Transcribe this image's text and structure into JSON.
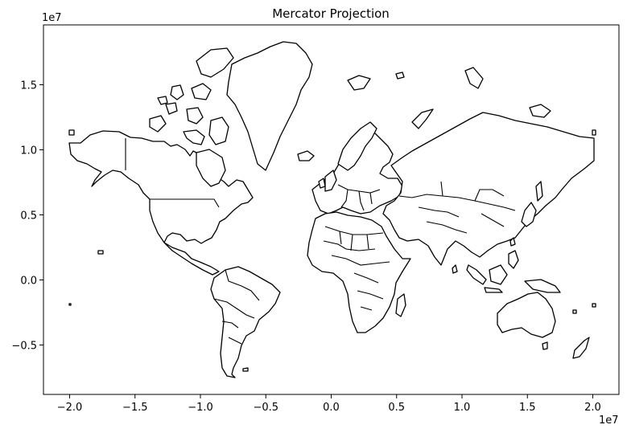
{
  "chart_data": {
    "type": "map",
    "title": "Mercator Projection",
    "projection": "Mercator",
    "xlim": [
      -2.2,
      2.2
    ],
    "ylim": [
      -0.88,
      1.96
    ],
    "x_ticks": [
      -2.0,
      -1.5,
      -1.0,
      -0.5,
      0.0,
      0.5,
      1.0,
      1.5,
      2.0
    ],
    "x_tick_labels": [
      "−2.0",
      "−1.5",
      "−1.0",
      "−0.5",
      "0.0",
      "0.5",
      "1.0",
      "1.5",
      "2.0"
    ],
    "y_ticks": [
      -0.5,
      0.0,
      0.5,
      1.0,
      1.5
    ],
    "y_tick_labels": [
      "−0.5",
      "0.0",
      "0.5",
      "1.0",
      "1.5"
    ],
    "x_offset_label": "1e7",
    "y_offset_label": "1e7",
    "grid": false,
    "style": {
      "land_fill": "#ffffff",
      "outline_color": "#000000"
    }
  }
}
